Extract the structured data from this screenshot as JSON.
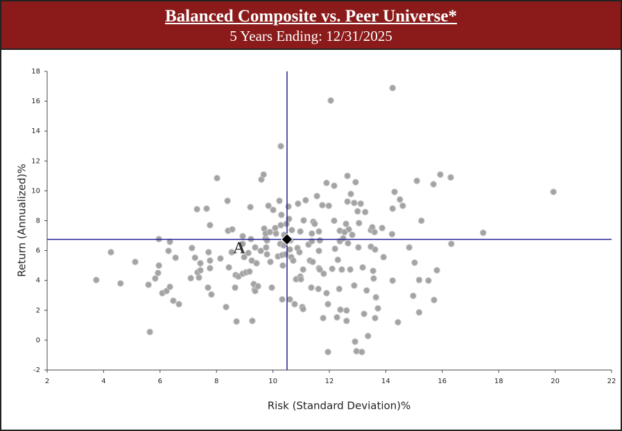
{
  "chart_data": {
    "type": "scatter",
    "title": "Balanced Composite vs. Peer Universe*",
    "subtitle": "5 Years Ending: 12/31/2025",
    "x_label": "Risk (Standard Deviation)%",
    "y_label": "Return (Annualized)%",
    "xlim": [
      2,
      22
    ],
    "xticks": [
      2,
      4,
      6,
      8,
      10,
      12,
      14,
      16,
      18,
      20,
      22
    ],
    "ylim": [
      -2,
      18
    ],
    "yticks": [
      -2,
      0,
      2,
      4,
      6,
      8,
      10,
      12,
      14,
      16,
      18
    ],
    "grid": false,
    "annotation": "A",
    "crosshair": {
      "x": 10.5,
      "y": 6.75,
      "color": "#1f1f8f"
    },
    "composite": {
      "x": 10.5,
      "y": 6.75,
      "color": "#000000"
    },
    "points": {
      "color": "#a3a3a3",
      "x": [
        3.74,
        4.26,
        4.6,
        5.12,
        5.59,
        5.64,
        5.83,
        5.96,
        5.96,
        5.93,
        6.08,
        6.23,
        6.3,
        6.35,
        6.35,
        6.47,
        6.55,
        6.67,
        7.09,
        7.13,
        7.24,
        7.31,
        7.33,
        7.38,
        7.43,
        7.43,
        7.65,
        7.7,
        7.72,
        7.77,
        7.77,
        7.77,
        7.82,
        8.02,
        8.14,
        8.34,
        8.39,
        8.41,
        8.44,
        8.54,
        8.56,
        8.66,
        8.68,
        8.71,
        8.78,
        8.93,
        8.93,
        8.93,
        8.98,
        9.05,
        9.13,
        9.17,
        9.2,
        9.22,
        9.25,
        9.27,
        9.32,
        9.35,
        9.37,
        9.37,
        9.42,
        9.47,
        9.57,
        9.59,
        9.67,
        9.69,
        9.74,
        9.74,
        9.76,
        9.79,
        9.79,
        9.84,
        9.89,
        9.91,
        9.96,
        10.01,
        10.08,
        10.11,
        10.18,
        10.23,
        10.26,
        10.28,
        10.28,
        10.3,
        10.33,
        10.33,
        10.35,
        10.38,
        10.4,
        10.45,
        10.48,
        10.55,
        10.57,
        10.6,
        10.6,
        10.62,
        10.65,
        10.67,
        10.72,
        10.77,
        10.82,
        10.87,
        10.89,
        10.94,
        10.97,
        10.97,
        10.99,
        11.04,
        11.07,
        11.07,
        11.09,
        11.16,
        11.26,
        11.31,
        11.36,
        11.38,
        11.38,
        11.41,
        11.43,
        11.48,
        11.56,
        11.61,
        11.63,
        11.63,
        11.63,
        11.66,
        11.66,
        11.75,
        11.78,
        11.8,
        11.9,
        11.9,
        11.95,
        11.95,
        11.98,
        12.05,
        12.1,
        12.17,
        12.17,
        12.2,
        12.27,
        12.3,
        12.35,
        12.37,
        12.37,
        12.39,
        12.44,
        12.49,
        12.54,
        12.59,
        12.61,
        12.61,
        12.64,
        12.64,
        12.66,
        12.69,
        12.74,
        12.76,
        12.81,
        12.88,
        12.88,
        12.91,
        12.93,
        12.96,
        13.0,
        13.03,
        13.05,
        13.11,
        13.15,
        13.18,
        13.23,
        13.27,
        13.32,
        13.37,
        13.47,
        13.47,
        13.52,
        13.55,
        13.57,
        13.6,
        13.62,
        13.62,
        13.65,
        13.72,
        13.87,
        13.92,
        14.22,
        14.24,
        14.24,
        14.24,
        14.31,
        14.43,
        14.5,
        14.6,
        14.83,
        14.97,
        15.02,
        15.1,
        15.18,
        15.18,
        15.26,
        15.51,
        15.71,
        15.81,
        15.93,
        16.32,
        16.3,
        15.69,
        17.45,
        19.94
      ],
      "y": [
        4.03,
        5.89,
        3.8,
        5.24,
        3.71,
        0.55,
        4.13,
        5.0,
        6.77,
        4.5,
        3.15,
        3.29,
        5.98,
        6.59,
        3.57,
        2.64,
        5.52,
        2.41,
        4.15,
        6.17,
        5.52,
        8.77,
        4.54,
        4.19,
        5.15,
        4.68,
        8.81,
        3.52,
        5.89,
        4.82,
        5.33,
        7.7,
        3.06,
        10.85,
        5.47,
        2.22,
        9.33,
        7.33,
        4.87,
        5.89,
        7.42,
        3.52,
        4.36,
        1.25,
        4.26,
        4.45,
        6.45,
        6.96,
        5.56,
        4.54,
        5.84,
        4.59,
        8.91,
        6.77,
        5.33,
        1.29,
        3.76,
        3.38,
        3.29,
        6.21,
        5.15,
        3.61,
        5.98,
        10.76,
        11.09,
        7.47,
        6.82,
        7.14,
        6.21,
        5.75,
        6.68,
        9.0,
        7.24,
        5.24,
        3.52,
        8.72,
        7.51,
        7.14,
        5.61,
        9.33,
        6.45,
        7.7,
        12.99,
        8.39,
        2.73,
        5.7,
        5.0,
        6.35,
        7.05,
        5.75,
        7.79,
        8.95,
        8.12,
        6.07,
        2.73,
        6.68,
        5.56,
        7.37,
        5.33,
        2.41,
        4.08,
        6.17,
        9.14,
        5.89,
        7.28,
        4.26,
        4.08,
        2.22,
        4.73,
        2.08,
        8.02,
        9.37,
        6.4,
        5.33,
        3.52,
        6.63,
        7.14,
        5.24,
        7.93,
        7.79,
        9.65,
        3.43,
        4.82,
        5.98,
        7.28,
        4.73,
        6.68,
        9.04,
        1.48,
        4.45,
        10.53,
        3.15,
        -0.79,
        2.41,
        9.0,
        16.05,
        4.78,
        10.34,
        8.0,
        6.12,
        1.53,
        5.38,
        3.43,
        7.33,
        6.63,
        2.04,
        4.73,
        6.82,
        7.24,
        7.79,
        1.99,
        1.29,
        9.28,
        11.0,
        6.49,
        7.42,
        4.73,
        9.79,
        7.05,
        9.19,
        3.66,
        -0.1,
        10.58,
        -0.74,
        8.63,
        6.21,
        7.84,
        9.14,
        -0.79,
        4.87,
        1.76,
        8.58,
        3.33,
        0.28,
        7.37,
        6.26,
        7.56,
        4.64,
        4.13,
        7.24,
        1.48,
        6.07,
        2.87,
        2.13,
        7.51,
        5.56,
        7.1,
        16.89,
        3.99,
        8.81,
        9.93,
        1.2,
        9.42,
        9.0,
        6.21,
        2.97,
        5.19,
        10.67,
        1.86,
        4.03,
        8.0,
        3.99,
        2.69,
        4.68,
        11.09,
        6.45,
        10.9,
        10.44,
        7.19,
        9.93
      ]
    }
  }
}
